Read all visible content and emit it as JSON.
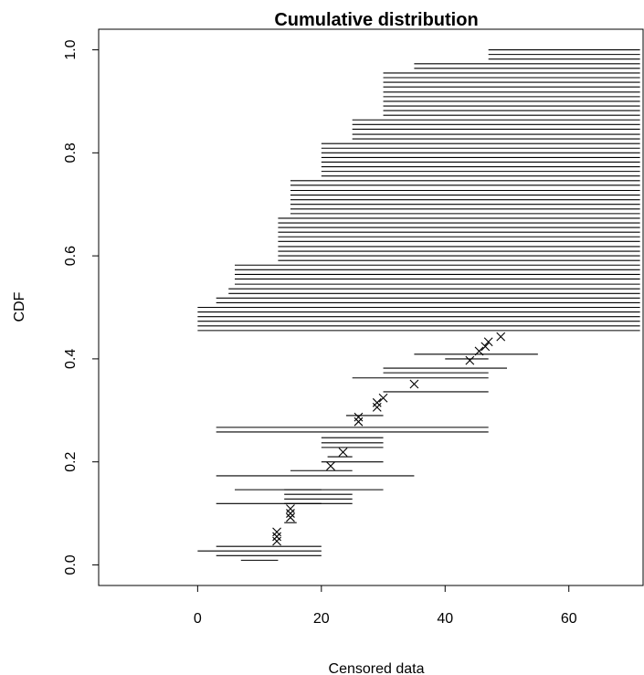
{
  "chart_data": {
    "type": "scatter",
    "title": "Cumulative distribution",
    "xlabel": "Censored data",
    "ylabel": "CDF",
    "xlim": [
      -16,
      72
    ],
    "ylim": [
      -0.04,
      1.04
    ],
    "x_ticks": [
      0,
      20,
      40,
      60
    ],
    "y_ticks": [
      0.0,
      0.2,
      0.4,
      0.6,
      0.8,
      1.0
    ],
    "x_tick_labels": [
      "0",
      "20",
      "40",
      "60"
    ],
    "y_tick_labels": [
      "0.0",
      "0.2",
      "0.4",
      "0.6",
      "0.8",
      "1.0"
    ],
    "grid": false,
    "legend": false,
    "series": [
      {
        "kind": "interval-censored",
        "intervals": [
          [
            7,
            13,
            0.009
          ],
          [
            3,
            20,
            0.018
          ],
          [
            0,
            20,
            0.027
          ],
          [
            3,
            20,
            0.036
          ],
          [
            14,
            16,
            0.082
          ],
          [
            14,
            20,
            0.119
          ],
          [
            3,
            25,
            0.119
          ],
          [
            14,
            25,
            0.128
          ],
          [
            14,
            25,
            0.137
          ],
          [
            14,
            20,
            0.146
          ],
          [
            6,
            30,
            0.146
          ],
          [
            3,
            35,
            0.173
          ],
          [
            15,
            25,
            0.183
          ],
          [
            20,
            30,
            0.2
          ],
          [
            21,
            25,
            0.21
          ],
          [
            20,
            30,
            0.228
          ],
          [
            20,
            30,
            0.237
          ],
          [
            20,
            30,
            0.247
          ],
          [
            3,
            47,
            0.258
          ],
          [
            3,
            47,
            0.267
          ],
          [
            24,
            30,
            0.29
          ],
          [
            30,
            47,
            0.336
          ],
          [
            25,
            47,
            0.363
          ],
          [
            30,
            47,
            0.373
          ],
          [
            30,
            50,
            0.382
          ],
          [
            40,
            47,
            0.4
          ],
          [
            35,
            55,
            0.409
          ]
        ],
        "right_censored": [
          [
            0,
            0.455
          ],
          [
            0,
            0.464
          ],
          [
            0,
            0.473
          ],
          [
            0,
            0.482
          ],
          [
            0,
            0.491
          ],
          [
            0,
            0.5
          ],
          [
            3,
            0.509
          ],
          [
            3,
            0.518
          ],
          [
            5,
            0.527
          ],
          [
            5,
            0.536
          ],
          [
            6,
            0.545
          ],
          [
            6,
            0.555
          ],
          [
            6,
            0.564
          ],
          [
            6,
            0.573
          ],
          [
            6,
            0.582
          ],
          [
            13,
            0.591
          ],
          [
            13,
            0.6
          ],
          [
            13,
            0.609
          ],
          [
            13,
            0.618
          ],
          [
            13,
            0.628
          ],
          [
            13,
            0.637
          ],
          [
            13,
            0.646
          ],
          [
            13,
            0.655
          ],
          [
            13,
            0.664
          ],
          [
            13,
            0.673
          ],
          [
            15,
            0.682
          ],
          [
            15,
            0.691
          ],
          [
            15,
            0.7
          ],
          [
            15,
            0.709
          ],
          [
            15,
            0.718
          ],
          [
            15,
            0.727
          ],
          [
            15,
            0.737
          ],
          [
            15,
            0.746
          ],
          [
            20,
            0.755
          ],
          [
            20,
            0.764
          ],
          [
            20,
            0.773
          ],
          [
            20,
            0.782
          ],
          [
            20,
            0.791
          ],
          [
            20,
            0.8
          ],
          [
            20,
            0.809
          ],
          [
            20,
            0.818
          ],
          [
            25,
            0.827
          ],
          [
            25,
            0.836
          ],
          [
            25,
            0.846
          ],
          [
            25,
            0.855
          ],
          [
            25,
            0.864
          ],
          [
            30,
            0.873
          ],
          [
            30,
            0.882
          ],
          [
            30,
            0.891
          ],
          [
            30,
            0.9
          ],
          [
            30,
            0.909
          ],
          [
            30,
            0.918
          ],
          [
            30,
            0.928
          ],
          [
            30,
            0.937
          ],
          [
            30,
            0.946
          ],
          [
            30,
            0.955
          ],
          [
            35,
            0.964
          ],
          [
            35,
            0.973
          ],
          [
            47,
            0.982
          ],
          [
            47,
            0.991
          ],
          [
            47,
            1.0
          ]
        ],
        "right_end": 71.5,
        "exact_points": [
          [
            12.8,
            0.046
          ],
          [
            12.8,
            0.055
          ],
          [
            12.8,
            0.064
          ],
          [
            15,
            0.092
          ],
          [
            15,
            0.1
          ],
          [
            15,
            0.109
          ],
          [
            21.5,
            0.192
          ],
          [
            23.5,
            0.219
          ],
          [
            26,
            0.278
          ],
          [
            26,
            0.287
          ],
          [
            29,
            0.306
          ],
          [
            29,
            0.315
          ],
          [
            30,
            0.324
          ],
          [
            35,
            0.351
          ],
          [
            44,
            0.397
          ],
          [
            45.5,
            0.415
          ],
          [
            46.5,
            0.424
          ],
          [
            47,
            0.433
          ],
          [
            49,
            0.443
          ]
        ]
      }
    ]
  }
}
